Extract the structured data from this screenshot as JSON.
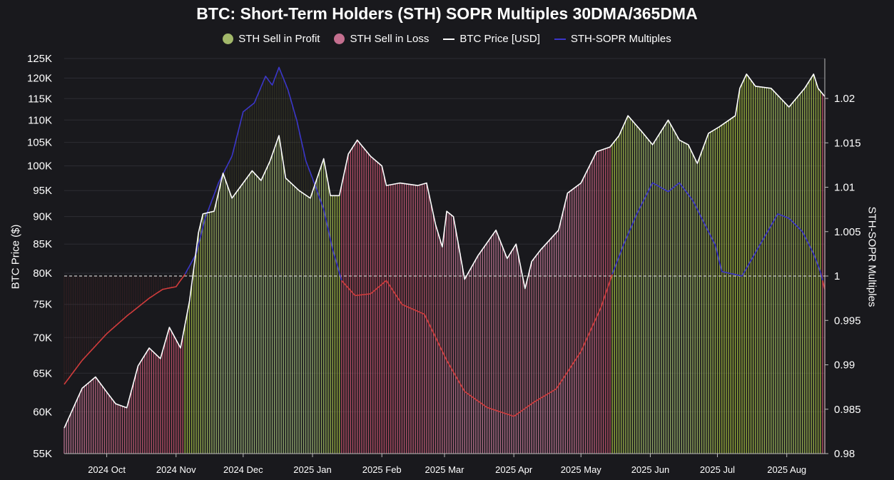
{
  "chart_data": {
    "type": "bar+line",
    "title": "BTC: Short-Term Holders (STH) SOPR Multiples 30DMA/365DMA",
    "legend": {
      "placement": "top-center",
      "entries": [
        {
          "name": "STH Sell in Profit",
          "marker": "dot",
          "color": "#a2b86a"
        },
        {
          "name": "STH Sell in Loss",
          "marker": "dot",
          "color": "#c46f8f"
        },
        {
          "name": "BTC Price [USD]",
          "marker": "line",
          "color": "#ffffff"
        },
        {
          "name": "STH-SOPR Multiples",
          "marker": "line",
          "color": "#3b36c9"
        }
      ]
    },
    "ylabel_left": "BTC Price ($)",
    "ylabel_right": "STH-SOPR Multiples",
    "left_axis": {
      "scale": "log",
      "range": [
        55000,
        125000
      ],
      "ticks": [
        55000,
        60000,
        65000,
        70000,
        75000,
        80000,
        85000,
        90000,
        95000,
        100000,
        105000,
        110000,
        115000,
        120000,
        125000
      ],
      "tick_labels": [
        "55K",
        "60K",
        "65K",
        "70K",
        "75K",
        "80K",
        "85K",
        "90K",
        "95K",
        "100K",
        "105K",
        "110K",
        "115K",
        "120K",
        "125K"
      ]
    },
    "right_axis": {
      "scale": "linear",
      "range": [
        0.98,
        1.0245
      ],
      "ticks": [
        0.98,
        0.985,
        0.99,
        0.995,
        1,
        1.005,
        1.01,
        1.015,
        1.02
      ],
      "tick_labels": [
        "0.98",
        "0.985",
        "0.99",
        "0.995",
        "1",
        "1.005",
        "1.01",
        "1.015",
        "1.02"
      ],
      "reference_line": 1
    },
    "x_axis": {
      "range": [
        "2024-09-12",
        "2025-08-18"
      ],
      "ticks": [
        "2024-10-01",
        "2024-11-01",
        "2024-12-01",
        "2025-01-01",
        "2025-02-01",
        "2025-03-01",
        "2025-04-01",
        "2025-05-01",
        "2025-06-01",
        "2025-07-01",
        "2025-08-01"
      ],
      "tick_labels": [
        "2024 Oct",
        "2024 Nov",
        "2024 Dec",
        "2025 Jan",
        "2025 Feb",
        "2025 Mar",
        "2025 Apr",
        "2025 May",
        "2025 Jun",
        "2025 Jul",
        "2025 Aug"
      ]
    },
    "grid": {
      "horizontal": true,
      "vertical": false
    },
    "colors": {
      "background": "#19191d",
      "profit_low": "#a9c23f",
      "profit_high": "#a2bb7a",
      "loss_low": "#c8506a",
      "loss_high": "#c47a98",
      "sopr_above_one": "#3b36c9",
      "sopr_below_one": "#d13c3c",
      "price": "#ffffff",
      "reference_line": "#cccccc"
    },
    "series": [
      {
        "name": "BTC Price [USD]",
        "points": [
          [
            "2024-09-12",
            58000
          ],
          [
            "2024-09-20",
            63000
          ],
          [
            "2024-09-26",
            64500
          ],
          [
            "2024-10-01",
            62500
          ],
          [
            "2024-10-05",
            61000
          ],
          [
            "2024-10-10",
            60500
          ],
          [
            "2024-10-15",
            66000
          ],
          [
            "2024-10-20",
            68500
          ],
          [
            "2024-10-25",
            67000
          ],
          [
            "2024-10-29",
            71500
          ],
          [
            "2024-11-03",
            68500
          ],
          [
            "2024-11-07",
            75500
          ],
          [
            "2024-11-11",
            87000
          ],
          [
            "2024-11-13",
            90500
          ],
          [
            "2024-11-18",
            91000
          ],
          [
            "2024-11-22",
            98500
          ],
          [
            "2024-11-26",
            93500
          ],
          [
            "2024-12-01",
            96500
          ],
          [
            "2024-12-05",
            99000
          ],
          [
            "2024-12-09",
            97000
          ],
          [
            "2024-12-13",
            101000
          ],
          [
            "2024-12-17",
            106500
          ],
          [
            "2024-12-20",
            97500
          ],
          [
            "2024-12-26",
            95000
          ],
          [
            "2024-12-31",
            93500
          ],
          [
            "2025-01-06",
            101500
          ],
          [
            "2025-01-09",
            94000
          ],
          [
            "2025-01-13",
            94000
          ],
          [
            "2025-01-17",
            102500
          ],
          [
            "2025-01-21",
            105500
          ],
          [
            "2025-01-27",
            102000
          ],
          [
            "2025-02-01",
            100000
          ],
          [
            "2025-02-03",
            96000
          ],
          [
            "2025-02-09",
            96500
          ],
          [
            "2025-02-17",
            96000
          ],
          [
            "2025-02-21",
            96500
          ],
          [
            "2025-02-25",
            88500
          ],
          [
            "2025-02-28",
            84500
          ],
          [
            "2025-03-02",
            91000
          ],
          [
            "2025-03-05",
            90000
          ],
          [
            "2025-03-10",
            79000
          ],
          [
            "2025-03-16",
            83000
          ],
          [
            "2025-03-24",
            87500
          ],
          [
            "2025-03-29",
            82500
          ],
          [
            "2025-04-02",
            85000
          ],
          [
            "2025-04-06",
            77500
          ],
          [
            "2025-04-09",
            82000
          ],
          [
            "2025-04-13",
            84000
          ],
          [
            "2025-04-21",
            87500
          ],
          [
            "2025-04-25",
            94500
          ],
          [
            "2025-05-01",
            96500
          ],
          [
            "2025-05-08",
            103000
          ],
          [
            "2025-05-14",
            104000
          ],
          [
            "2025-05-18",
            106500
          ],
          [
            "2025-05-22",
            111000
          ],
          [
            "2025-05-28",
            107500
          ],
          [
            "2025-06-02",
            104500
          ],
          [
            "2025-06-09",
            110000
          ],
          [
            "2025-06-14",
            105500
          ],
          [
            "2025-06-18",
            104500
          ],
          [
            "2025-06-22",
            100500
          ],
          [
            "2025-06-27",
            107000
          ],
          [
            "2025-07-02",
            108500
          ],
          [
            "2025-07-09",
            111000
          ],
          [
            "2025-07-11",
            117500
          ],
          [
            "2025-07-14",
            121000
          ],
          [
            "2025-07-18",
            118000
          ],
          [
            "2025-07-25",
            117500
          ],
          [
            "2025-08-02",
            113000
          ],
          [
            "2025-08-09",
            117500
          ],
          [
            "2025-08-13",
            121000
          ],
          [
            "2025-08-15",
            117500
          ],
          [
            "2025-08-18",
            115500
          ]
        ]
      },
      {
        "name": "STH-SOPR Multiples",
        "points": [
          [
            "2024-09-12",
            0.9878
          ],
          [
            "2024-09-20",
            0.9905
          ],
          [
            "2024-10-01",
            0.9935
          ],
          [
            "2024-10-10",
            0.9955
          ],
          [
            "2024-10-20",
            0.9975
          ],
          [
            "2024-10-26",
            0.9985
          ],
          [
            "2024-11-01",
            0.9988
          ],
          [
            "2024-11-05",
            1.0002
          ],
          [
            "2024-11-10",
            1.0025
          ],
          [
            "2024-11-14",
            1.0065
          ],
          [
            "2024-11-20",
            1.0105
          ],
          [
            "2024-11-26",
            1.0135
          ],
          [
            "2024-12-01",
            1.0185
          ],
          [
            "2024-12-06",
            1.0195
          ],
          [
            "2024-12-11",
            1.0225
          ],
          [
            "2024-12-14",
            1.0215
          ],
          [
            "2024-12-17",
            1.0235
          ],
          [
            "2024-12-21",
            1.021
          ],
          [
            "2024-12-25",
            1.0175
          ],
          [
            "2024-12-29",
            1.013
          ],
          [
            "2025-01-01",
            1.011
          ],
          [
            "2025-01-06",
            1.0075
          ],
          [
            "2025-01-10",
            1.003
          ],
          [
            "2025-01-14",
            0.9995
          ],
          [
            "2025-01-20",
            0.9978
          ],
          [
            "2025-01-27",
            0.998
          ],
          [
            "2025-02-03",
            0.9995
          ],
          [
            "2025-02-10",
            0.9968
          ],
          [
            "2025-02-20",
            0.9957
          ],
          [
            "2025-03-02",
            0.9905
          ],
          [
            "2025-03-10",
            0.987
          ],
          [
            "2025-03-20",
            0.9852
          ],
          [
            "2025-04-01",
            0.9842
          ],
          [
            "2025-04-10",
            0.9858
          ],
          [
            "2025-04-20",
            0.9873
          ],
          [
            "2025-05-01",
            0.9915
          ],
          [
            "2025-05-10",
            0.9965
          ],
          [
            "2025-05-15",
            1.0002
          ],
          [
            "2025-05-20",
            1.0035
          ],
          [
            "2025-05-26",
            1.007
          ],
          [
            "2025-06-02",
            1.0105
          ],
          [
            "2025-06-09",
            1.0095
          ],
          [
            "2025-06-14",
            1.0105
          ],
          [
            "2025-06-20",
            1.0085
          ],
          [
            "2025-06-25",
            1.006
          ],
          [
            "2025-06-30",
            1.0035
          ],
          [
            "2025-07-03",
            1.0005
          ],
          [
            "2025-07-12",
            1.0
          ],
          [
            "2025-07-20",
            1.0035
          ],
          [
            "2025-07-28",
            1.007
          ],
          [
            "2025-08-02",
            1.0065
          ],
          [
            "2025-08-08",
            1.005
          ],
          [
            "2025-08-13",
            1.0025
          ],
          [
            "2025-08-16",
            1.0005
          ],
          [
            "2025-08-18",
            0.9985
          ]
        ]
      }
    ]
  }
}
